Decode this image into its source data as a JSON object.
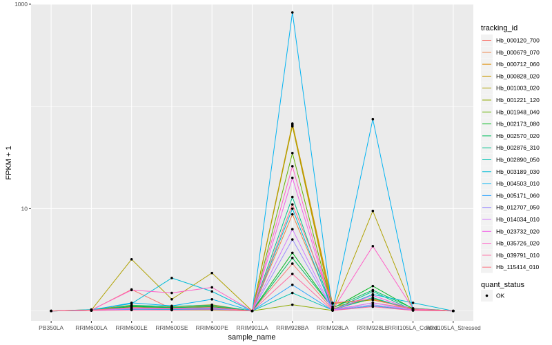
{
  "chart_data": {
    "type": "line",
    "xlabel": "sample_name",
    "ylabel": "FPKM + 1",
    "y_scale": "log10",
    "ylim": [
      0.8,
      1000
    ],
    "y_ticks": [
      {
        "value": 10,
        "label": "10"
      },
      {
        "value": 1000,
        "label": "1000"
      }
    ],
    "categories": [
      "PB350LA",
      "RRIM600LA",
      "RRIM600LE",
      "RRIM600SE",
      "RRIM600PE",
      "RRIM901LA",
      "RRIM928BA",
      "RRIM928LA",
      "RRIM928LE",
      "RRII105LA_Control",
      "RRII105LA_Stressed"
    ],
    "grid": true,
    "panel_background": "#ebebeb",
    "grid_color": "#ffffff",
    "point_color": "#000000",
    "legend": {
      "position": "right",
      "title": "tracking_id",
      "shape_title": "quant_status",
      "shape_label": "OK"
    },
    "series": [
      {
        "name": "Hb_000120_700",
        "color": "#F8766D",
        "values": [
          1,
          1.02,
          1.62,
          1.05,
          1.04,
          1,
          2.9,
          1.03,
          1.2,
          1.05,
          1
        ]
      },
      {
        "name": "Hb_000679_070",
        "color": "#EE8044",
        "values": [
          1,
          1.02,
          1.05,
          1.04,
          1.04,
          1,
          8.8,
          1.05,
          1.32,
          1.03,
          1
        ]
      },
      {
        "name": "Hb_000712_060",
        "color": "#DE8C00",
        "values": [
          1,
          1.01,
          1.1,
          1.08,
          1.12,
          1,
          66,
          1.1,
          1.3,
          1.05,
          1
        ]
      },
      {
        "name": "Hb_000828_020",
        "color": "#C79800",
        "values": [
          1,
          1.03,
          1.14,
          1.1,
          1.15,
          1,
          68,
          1.18,
          1.28,
          1.06,
          1
        ]
      },
      {
        "name": "Hb_001003_020",
        "color": "#AFA100",
        "values": [
          1,
          1.02,
          3.2,
          1.3,
          2.35,
          1,
          64,
          1.02,
          9.5,
          1.02,
          1
        ]
      },
      {
        "name": "Hb_001221_120",
        "color": "#8EAB00",
        "values": [
          1,
          1.01,
          1.03,
          1.02,
          1.02,
          1,
          1.15,
          1.01,
          1.12,
          1.02,
          1
        ]
      },
      {
        "name": "Hb_001948_040",
        "color": "#64B200",
        "values": [
          1,
          1.01,
          1.08,
          1.06,
          1.08,
          1,
          35,
          1.04,
          1.32,
          1.04,
          1
        ]
      },
      {
        "name": "Hb_002173_080",
        "color": "#00B81F",
        "values": [
          1,
          1.02,
          1.1,
          1.08,
          1.1,
          1,
          3.7,
          1.06,
          1.75,
          1.05,
          1
        ]
      },
      {
        "name": "Hb_002570_020",
        "color": "#00BD5C",
        "values": [
          1,
          1.02,
          1.12,
          1.08,
          1.1,
          1,
          3.3,
          1.07,
          1.6,
          1.06,
          1
        ]
      },
      {
        "name": "Hb_002876_310",
        "color": "#00C08D",
        "values": [
          1,
          1.01,
          1.13,
          1.11,
          1.14,
          1,
          13,
          1.02,
          1.55,
          1.02,
          1
        ]
      },
      {
        "name": "Hb_002890_050",
        "color": "#00C1B3",
        "values": [
          1,
          1.01,
          1.05,
          1.04,
          1.05,
          1,
          1.5,
          1.02,
          1.35,
          1.02,
          1
        ]
      },
      {
        "name": "Hb_003189_030",
        "color": "#00BCD6",
        "values": [
          1,
          1.03,
          1.18,
          2.1,
          1.55,
          1,
          10,
          1.01,
          1.45,
          1.2,
          1
        ]
      },
      {
        "name": "Hb_004503_010",
        "color": "#00B3F2",
        "values": [
          1,
          1.02,
          1.2,
          1.12,
          1.3,
          1,
          830,
          1.01,
          75,
          1.02,
          1
        ]
      },
      {
        "name": "Hb_005171_060",
        "color": "#29A3FF",
        "values": [
          1,
          1.01,
          1.03,
          1.03,
          1.04,
          1,
          1.8,
          1.01,
          1.12,
          1.01,
          1
        ]
      },
      {
        "name": "Hb_012707_050",
        "color": "#9C8DFF",
        "values": [
          1,
          1.01,
          1.05,
          1.05,
          1.06,
          1,
          5,
          1.02,
          1.15,
          1.02,
          1
        ]
      },
      {
        "name": "Hb_014034_010",
        "color": "#D277FF",
        "values": [
          1,
          1.01,
          1.06,
          1.05,
          1.07,
          1,
          6.3,
          1.02,
          1.2,
          1.02,
          1
        ]
      },
      {
        "name": "Hb_023732_020",
        "color": "#F161E7",
        "values": [
          1,
          1.02,
          1.07,
          1.05,
          1.08,
          1,
          20,
          1.02,
          1.42,
          1.03,
          1
        ]
      },
      {
        "name": "Hb_035726_020",
        "color": "#FF61C7",
        "values": [
          1,
          1.02,
          1.6,
          1.5,
          1.7,
          1,
          26,
          1.02,
          4.3,
          1.05,
          1
        ]
      },
      {
        "name": "Hb_039791_010",
        "color": "#FF68A1",
        "values": [
          1,
          1.01,
          1.02,
          1.02,
          1.03,
          1,
          2.3,
          1.01,
          1.1,
          1.01,
          1
        ]
      },
      {
        "name": "Hb_115414_010",
        "color": "#FC717F",
        "values": [
          1,
          1.02,
          1.08,
          1.06,
          1.08,
          1,
          11,
          1.2,
          1.3,
          1.03,
          1
        ]
      }
    ]
  }
}
